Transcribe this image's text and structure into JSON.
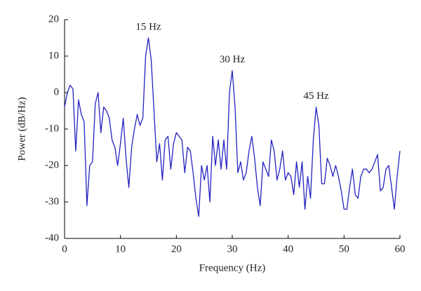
{
  "chart_data": {
    "type": "line",
    "xlabel": "Frequency (Hz)",
    "ylabel": "Power (dB/Hz)",
    "xlim": [
      0,
      60
    ],
    "xticks": [
      0,
      10,
      20,
      30,
      40,
      50,
      60
    ],
    "ylim": [
      -40,
      20
    ],
    "yticks": [
      -40,
      -30,
      -20,
      -10,
      0,
      10,
      20
    ],
    "grid": false,
    "annotations": [
      {
        "text": "15 Hz",
        "x": 15,
        "y": 15
      },
      {
        "text": "30 Hz",
        "x": 30,
        "y": 6
      },
      {
        "text": "45 Hz",
        "x": 45,
        "y": -4
      }
    ],
    "x": [
      0,
      0.5,
      1,
      1.5,
      2,
      2.5,
      3,
      3.5,
      4,
      4.5,
      5,
      5.5,
      6,
      6.5,
      7,
      7.5,
      8,
      8.5,
      9,
      9.5,
      10,
      10.5,
      11,
      11.5,
      12,
      12.5,
      13,
      13.5,
      14,
      14.5,
      15,
      15.5,
      16,
      16.5,
      17,
      17.5,
      18,
      18.5,
      19,
      19.5,
      20,
      20.5,
      21,
      21.5,
      22,
      22.5,
      23,
      23.5,
      24,
      24.5,
      25,
      25.5,
      26,
      26.5,
      27,
      27.5,
      28,
      28.5,
      29,
      29.5,
      30,
      30.5,
      31,
      31.5,
      32,
      32.5,
      33,
      33.5,
      34,
      34.5,
      35,
      35.5,
      36,
      36.5,
      37,
      37.5,
      38,
      38.5,
      39,
      39.5,
      40,
      40.5,
      41,
      41.5,
      42,
      42.5,
      43,
      43.5,
      44,
      44.5,
      45,
      45.5,
      46,
      46.5,
      47,
      47.5,
      48,
      48.5,
      49,
      49.5,
      50,
      50.5,
      51,
      51.5,
      52,
      52.5,
      53,
      53.5,
      54,
      54.5,
      55,
      55.5,
      56,
      56.5,
      57,
      57.5,
      58,
      58.5,
      59,
      59.5,
      60
    ],
    "series": [
      {
        "color": "#2222c0",
        "values": [
          -4,
          0,
          2,
          1,
          -16,
          -2,
          -6,
          -8,
          -31,
          -20,
          -19,
          -3,
          0,
          -11,
          -4,
          -5,
          -7,
          -13,
          -15,
          -20,
          -14,
          -7,
          -18,
          -26,
          -15,
          -10,
          -6,
          -9,
          -7,
          10,
          15,
          9,
          -5,
          -19,
          -14,
          -24,
          -13,
          -12,
          -21,
          -14,
          -11,
          -12,
          -13,
          -22,
          -15,
          -16,
          -22,
          -29,
          -34,
          -20,
          -24,
          -20,
          -30,
          -12,
          -20,
          -13,
          -21,
          -13,
          -21,
          0,
          6,
          -4,
          -22,
          -19,
          -24,
          -22,
          -16,
          -12,
          -18,
          -26,
          -31,
          -19,
          -21,
          -23,
          -13,
          -16,
          -24,
          -21,
          -16,
          -24,
          -22,
          -23,
          -28,
          -19,
          -26,
          -19,
          -32,
          -23,
          -29,
          -13,
          -4,
          -9,
          -25,
          -25,
          -18,
          -20,
          -23,
          -20,
          -23,
          -27,
          -32,
          -32,
          -26,
          -21,
          -28,
          -29,
          -23,
          -21,
          -21,
          -22,
          -21,
          -19,
          -17,
          -27,
          -26,
          -21,
          -20,
          -26,
          -32,
          -23,
          -16
        ]
      }
    ]
  }
}
